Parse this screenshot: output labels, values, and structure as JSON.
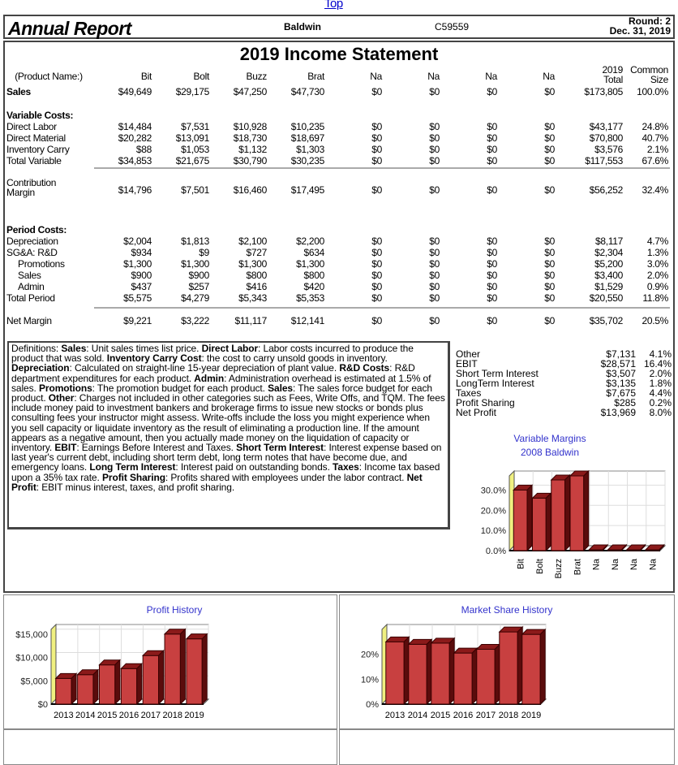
{
  "top_link": "Top",
  "header": {
    "title": "Annual Report",
    "company": "Baldwin",
    "code": "C59559",
    "round": "Round: 2",
    "date": "Dec. 31, 2019"
  },
  "statement": {
    "title": "2019 Income Statement",
    "columns": [
      "Bit",
      "Bolt",
      "Buzz",
      "Brat",
      "Na",
      "Na",
      "Na",
      "Na"
    ],
    "product_name_label": "(Product Name:)",
    "total_label": [
      "2019",
      "Total"
    ],
    "common_label": [
      "Common",
      "Size"
    ],
    "rows": [
      {
        "label": "Sales",
        "bold": true,
        "values": [
          "$49,649",
          "$29,175",
          "$47,250",
          "$47,730",
          "$0",
          "$0",
          "$0",
          "$0"
        ],
        "total": "$173,805",
        "pct": "100.0%"
      },
      {
        "label": "Variable Costs:",
        "bold": true,
        "heading": true
      },
      {
        "label": "Direct Labor",
        "values": [
          "$14,484",
          "$7,531",
          "$10,928",
          "$10,235",
          "$0",
          "$0",
          "$0",
          "$0"
        ],
        "total": "$43,177",
        "pct": "24.8%"
      },
      {
        "label": "Direct Material",
        "values": [
          "$20,282",
          "$13,091",
          "$18,730",
          "$18,697",
          "$0",
          "$0",
          "$0",
          "$0"
        ],
        "total": "$70,800",
        "pct": "40.7%"
      },
      {
        "label": "Inventory Carry",
        "values": [
          "$88",
          "$1,053",
          "$1,132",
          "$1,303",
          "$0",
          "$0",
          "$0",
          "$0"
        ],
        "total": "$3,576",
        "pct": "2.1%"
      },
      {
        "label": "Total Variable",
        "values": [
          "$34,853",
          "$21,675",
          "$30,790",
          "$30,235",
          "$0",
          "$0",
          "$0",
          "$0"
        ],
        "total": "$117,553",
        "pct": "67.6%"
      },
      {
        "label": "Contribution Margin",
        "values": [
          "$14,796",
          "$7,501",
          "$16,460",
          "$17,495",
          "$0",
          "$0",
          "$0",
          "$0"
        ],
        "total": "$56,252",
        "pct": "32.4%"
      },
      {
        "label": "Period Costs:",
        "bold": true,
        "heading": true
      },
      {
        "label": "Depreciation",
        "values": [
          "$2,004",
          "$1,813",
          "$2,100",
          "$2,200",
          "$0",
          "$0",
          "$0",
          "$0"
        ],
        "total": "$8,117",
        "pct": "4.7%"
      },
      {
        "label": "SG&A: R&D",
        "values": [
          "$934",
          "$9",
          "$727",
          "$634",
          "$0",
          "$0",
          "$0",
          "$0"
        ],
        "total": "$2,304",
        "pct": "1.3%"
      },
      {
        "label": "Promotions",
        "indent": true,
        "values": [
          "$1,300",
          "$1,300",
          "$1,300",
          "$1,300",
          "$0",
          "$0",
          "$0",
          "$0"
        ],
        "total": "$5,200",
        "pct": "3.0%"
      },
      {
        "label": "Sales",
        "indent": true,
        "values": [
          "$900",
          "$900",
          "$800",
          "$800",
          "$0",
          "$0",
          "$0",
          "$0"
        ],
        "total": "$3,400",
        "pct": "2.0%"
      },
      {
        "label": "Admin",
        "indent": true,
        "values": [
          "$437",
          "$257",
          "$416",
          "$420",
          "$0",
          "$0",
          "$0",
          "$0"
        ],
        "total": "$1,529",
        "pct": "0.9%"
      },
      {
        "label": "Total Period",
        "values": [
          "$5,575",
          "$4,279",
          "$5,343",
          "$5,353",
          "$0",
          "$0",
          "$0",
          "$0"
        ],
        "total": "$20,550",
        "pct": "11.8%"
      },
      {
        "label": "Net Margin",
        "values": [
          "$9,221",
          "$3,222",
          "$11,117",
          "$12,141",
          "$0",
          "$0",
          "$0",
          "$0"
        ],
        "total": "$35,702",
        "pct": "20.5%"
      }
    ]
  },
  "definitions": [
    {
      "t": "Definitions: "
    },
    {
      "b": "Sales"
    },
    {
      "t": ": Unit sales times list price. "
    },
    {
      "b": "Direct Labor"
    },
    {
      "t": ": Labor costs incurred to produce the product that was sold. "
    },
    {
      "b": "Inventory Carry Cost"
    },
    {
      "t": ": the cost to carry unsold goods in inventory. "
    },
    {
      "b": "Depreciation"
    },
    {
      "t": ": Calculated on straight-line 15-year depreciation of plant value. "
    },
    {
      "b": "R&D Costs"
    },
    {
      "t": ": R&D department expenditures for each product. "
    },
    {
      "b": "Admin"
    },
    {
      "t": ": Administration overhead is estimated at 1.5% of sales. "
    },
    {
      "b": "Promotions"
    },
    {
      "t": ": The promotion budget for each product. "
    },
    {
      "b": "Sales"
    },
    {
      "t": ": The sales force budget for each product. "
    },
    {
      "b": "Other"
    },
    {
      "t": ": Charges not included in other categories such as Fees, Write Offs, and TQM. The fees include money paid to investment bankers and brokerage firms to issue new stocks or bonds plus consulting fees your instructor might assess. Write-offs include the loss you might experience when you sell capacity or liquidate inventory as the result of eliminating a production line. If the amount appears as a negative amount, then you actually made money on the liquidation of capacity or inventory. "
    },
    {
      "b": "EBIT"
    },
    {
      "t": ": Earnings Before Interest and Taxes. "
    },
    {
      "b": "Short Term Interest"
    },
    {
      "t": ": Interest expense based on last year's current debt, including short term debt, long term notes that have become due, and emergency loans. "
    },
    {
      "b": "Long Term Interest"
    },
    {
      "t": ": Interest paid on outstanding bonds. "
    },
    {
      "b": "Taxes"
    },
    {
      "t": ": Income tax based upon a 35% tax rate. "
    },
    {
      "b": "Profit Sharing"
    },
    {
      "t": ": Profits shared with employees under the labor contract. "
    },
    {
      "b": "Net Profit"
    },
    {
      "t": ": EBIT minus interest, taxes, and profit sharing."
    }
  ],
  "financials": [
    {
      "label": "Other",
      "value": "$7,131",
      "pct": "4.1%"
    },
    {
      "label": "EBIT",
      "value": "$28,571",
      "pct": "16.4%"
    },
    {
      "label": "Short Term Interest",
      "value": "$3,507",
      "pct": "2.0%"
    },
    {
      "label": "LongTerm Interest",
      "value": "$3,135",
      "pct": "1.8%"
    },
    {
      "label": "Taxes",
      "value": "$7,675",
      "pct": "4.4%"
    },
    {
      "label": "Profit Sharing",
      "value": "$285",
      "pct": "0.2%"
    },
    {
      "label": "Net Profit",
      "value": "$13,969",
      "pct": "8.0%"
    }
  ],
  "colors": {
    "bar": "#c84040",
    "bar_top": "#8b1a1a",
    "bar_side": "#5a0c0c",
    "title": "#3333cc",
    "axis_wall": "#f0f080"
  },
  "chart_data": [
    {
      "type": "bar",
      "title": "Variable Margins",
      "subtitle": "2008 Baldwin",
      "categories": [
        "Bit",
        "Bolt",
        "Buzz",
        "Brat",
        "Na",
        "Na",
        "Na",
        "Na"
      ],
      "values": [
        30,
        26,
        35,
        37,
        0,
        0,
        0,
        0
      ],
      "ylim": [
        0,
        37
      ],
      "yticks": [
        "0.0%",
        "10.0%",
        "20.0%",
        "30.0%"
      ],
      "ytick_values": [
        0,
        10,
        20,
        30
      ],
      "grid": true
    },
    {
      "type": "bar",
      "title": "Profit History",
      "categories": [
        "2013",
        "2014",
        "2015",
        "2016",
        "2017",
        "2018",
        "2019"
      ],
      "values": [
        5500,
        6300,
        8400,
        7600,
        10400,
        15000,
        13969
      ],
      "ylim": [
        0,
        16000
      ],
      "yticks": [
        "$0",
        "$5,000",
        "$10,000",
        "$15,000"
      ],
      "ytick_values": [
        0,
        5000,
        10000,
        15000
      ],
      "grid": true
    },
    {
      "type": "bar",
      "title": "Market Share History",
      "categories": [
        "2013",
        "2014",
        "2015",
        "2016",
        "2017",
        "2018",
        "2019"
      ],
      "values": [
        25,
        24,
        24.5,
        20.5,
        22,
        29,
        28
      ],
      "ylim": [
        0,
        30
      ],
      "yticks": [
        "0%",
        "10%",
        "20%"
      ],
      "ytick_values": [
        0,
        10,
        20
      ],
      "grid": true
    }
  ]
}
